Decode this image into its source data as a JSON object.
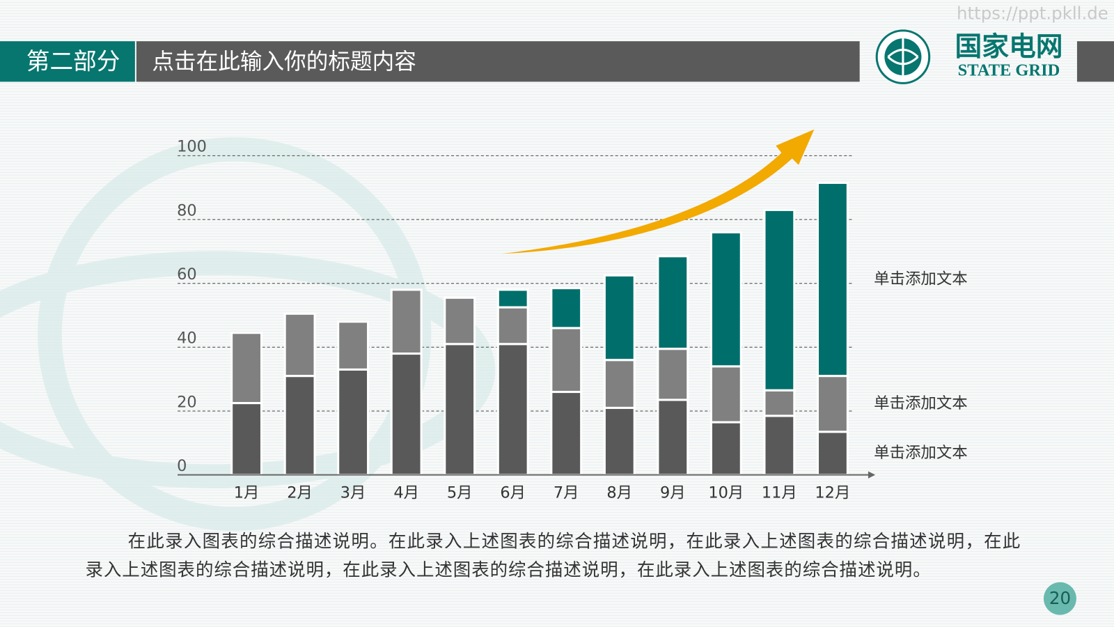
{
  "watermark": "https://ppt.pkll.de",
  "header": {
    "section": "第二部分",
    "title": "点击在此输入你的标题内容",
    "logo_cn": "国家电网",
    "logo_en": "STATE GRID"
  },
  "chart_data": {
    "type": "stacked-bar",
    "categories": [
      "1月",
      "2月",
      "3月",
      "4月",
      "5月",
      "6月",
      "7月",
      "8月",
      "9月",
      "10月",
      "11月",
      "12月"
    ],
    "series": [
      {
        "name": "单击添加文本",
        "color": "#595959",
        "values": [
          22.5,
          31,
          33,
          38,
          41,
          41,
          26,
          21,
          23.5,
          16.5,
          18.5,
          13.5
        ]
      },
      {
        "name": "单击添加文本",
        "color": "#808080",
        "values": [
          22,
          19.5,
          15,
          20,
          14.5,
          11.5,
          20,
          15,
          16,
          17.5,
          8,
          17.5
        ]
      },
      {
        "name": "单击添加文本",
        "color": "#006f6b",
        "values": [
          0,
          0,
          0,
          0,
          0,
          5.5,
          12.5,
          26.5,
          29,
          42,
          56.5,
          60.5
        ]
      }
    ],
    "ylim": [
      0,
      100
    ],
    "yticks": [
      0,
      20,
      40,
      60,
      80,
      100
    ],
    "grid": true
  },
  "description": [
    "在此录入图表的综合描述说明。在此录入上述图表的综合描述说明，在此录入上述图表的综合描述说明，在此",
    "录入上述图表的综合描述说明，在此录入上述图表的综合描述说明，在此录入上述图表的综合描述说明。"
  ],
  "page_number": "20"
}
